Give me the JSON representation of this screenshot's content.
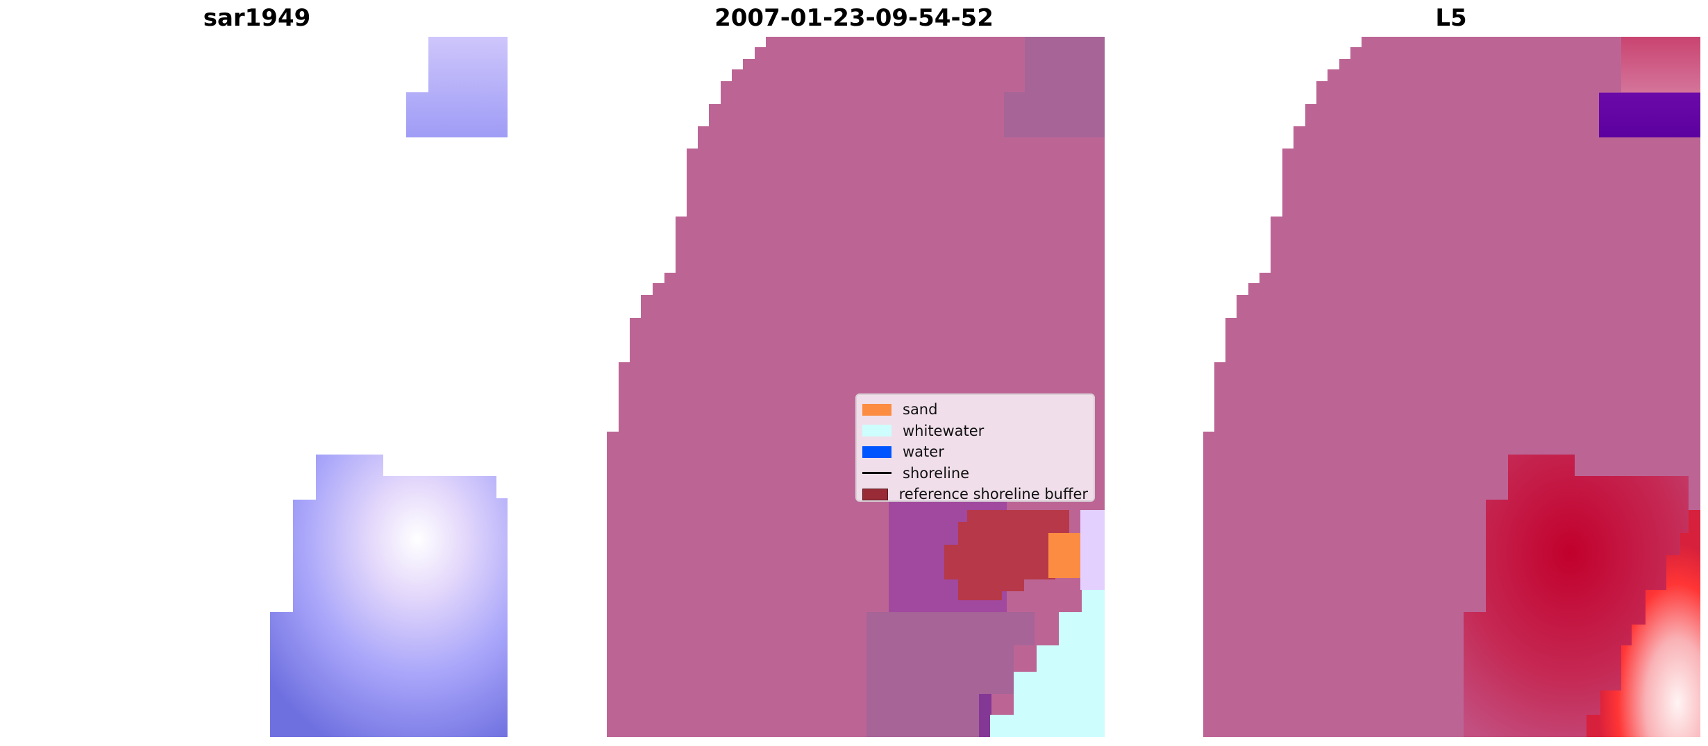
{
  "panels": [
    {
      "title": "sar1949"
    },
    {
      "title": "2007-01-23-09-54-52"
    },
    {
      "title": "L5"
    }
  ],
  "legend": {
    "items": [
      {
        "label": "sand",
        "color": "#fb8c41",
        "kind": "patch"
      },
      {
        "label": "whitewater",
        "color": "#cdfdfd",
        "kind": "patch"
      },
      {
        "label": "water",
        "color": "#0055ff",
        "kind": "patch"
      },
      {
        "label": "shoreline",
        "color": "#000000",
        "kind": "line"
      },
      {
        "label": "reference shoreline buffer",
        "color": "#982b35",
        "kind": "patch"
      }
    ]
  },
  "colors": {
    "background_magenta": "#bc6595",
    "buffer_red": "#b73848",
    "sar_blue": "#8a8bf6",
    "whitewater": "#cdfdfd",
    "sand": "#fb8c41"
  }
}
